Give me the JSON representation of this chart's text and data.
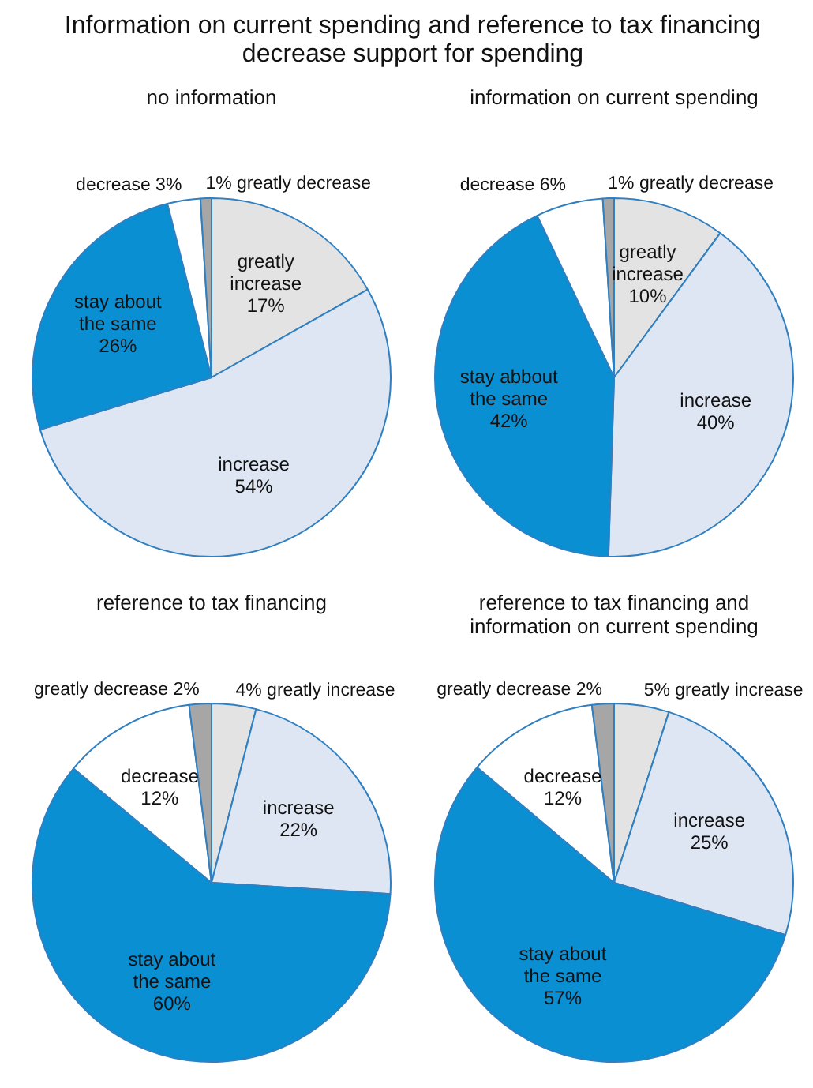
{
  "chart_data": [
    {
      "type": "pie",
      "title": "Information on current spending and reference to tax financing decrease support for spending",
      "subtitle": "no information",
      "categories": [
        "greatly increase",
        "increase",
        "stay about the same",
        "decrease",
        "greatly decrease"
      ],
      "values": [
        17,
        54,
        26,
        3,
        1
      ],
      "value_labels": [
        "17%",
        "54%",
        "26%",
        "3%",
        "1%"
      ],
      "colors": [
        "#e3e3e3",
        "#dde6f2",
        "#0a8fd2",
        "#ffffff",
        "#a6a6a6"
      ]
    },
    {
      "type": "pie",
      "title": "information on current spending",
      "categories": [
        "greatly increase",
        "increase",
        "stay abbout the same",
        "decrease",
        "greatly decrease"
      ],
      "values": [
        10,
        40,
        42,
        6,
        1
      ],
      "value_labels": [
        "10%",
        "40%",
        "42%",
        "6%",
        "1%"
      ],
      "colors": [
        "#e3e3e3",
        "#dde6f2",
        "#0a8fd2",
        "#ffffff",
        "#a6a6a6"
      ]
    },
    {
      "type": "pie",
      "title": "reference to tax financing",
      "categories": [
        "greatly increase",
        "increase",
        "stay about the same",
        "decrease",
        "greatly decrease"
      ],
      "values": [
        4,
        22,
        60,
        12,
        2
      ],
      "value_labels": [
        "4%",
        "22%",
        "60%",
        "12%",
        "2%"
      ],
      "colors": [
        "#e3e3e3",
        "#dde6f2",
        "#0a8fd2",
        "#ffffff",
        "#a6a6a6"
      ]
    },
    {
      "type": "pie",
      "title": "reference to tax financing and information on current spending",
      "categories": [
        "greatly increase",
        "increase",
        "stay about the same",
        "decrease",
        "greatly decrease"
      ],
      "values": [
        5,
        25,
        57,
        12,
        2
      ],
      "value_labels": [
        "5%",
        "25%",
        "57%",
        "12%",
        "2%"
      ],
      "colors": [
        "#e3e3e3",
        "#dde6f2",
        "#0a8fd2",
        "#ffffff",
        "#a6a6a6"
      ]
    }
  ]
}
